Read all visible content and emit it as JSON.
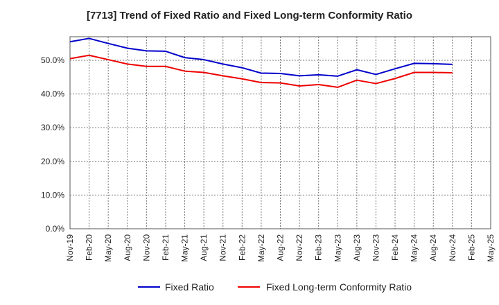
{
  "chart_data": {
    "type": "line",
    "title": "[7713]  Trend of Fixed Ratio and Fixed Long-term Conformity Ratio",
    "xlabel": "",
    "ylabel": "",
    "ylim": [
      0,
      57
    ],
    "y_ticks": [
      "0.0%",
      "10.0%",
      "20.0%",
      "30.0%",
      "40.0%",
      "50.0%"
    ],
    "y_tick_values": [
      0,
      10,
      20,
      30,
      40,
      50
    ],
    "x_ticks": [
      "Nov-19",
      "Feb-20",
      "May-20",
      "Aug-20",
      "Nov-20",
      "Feb-21",
      "May-21",
      "Aug-21",
      "Nov-21",
      "Feb-22",
      "May-22",
      "Aug-22",
      "Nov-22",
      "Feb-23",
      "May-23",
      "Aug-23",
      "Nov-23",
      "Feb-24",
      "May-24",
      "Aug-24",
      "Nov-24",
      "Feb-25",
      "May-25"
    ],
    "grid": true,
    "legend_position": "bottom",
    "series": [
      {
        "name": "Fixed Ratio",
        "color": "#0000cc",
        "values": [
          55.5,
          56.5,
          55.0,
          53.6,
          52.8,
          52.7,
          50.8,
          50.2,
          48.9,
          47.8,
          46.2,
          46.1,
          45.4,
          45.7,
          45.3,
          47.2,
          45.8,
          47.5,
          49.1,
          49.0,
          48.8
        ]
      },
      {
        "name": "Fixed Long-term Conformity Ratio",
        "color": "#ee0000",
        "values": [
          50.5,
          51.5,
          50.2,
          48.9,
          48.2,
          48.2,
          46.8,
          46.4,
          45.4,
          44.5,
          43.4,
          43.3,
          42.4,
          42.8,
          42.0,
          44.1,
          43.1,
          44.6,
          46.4,
          46.4,
          46.3
        ]
      }
    ]
  }
}
